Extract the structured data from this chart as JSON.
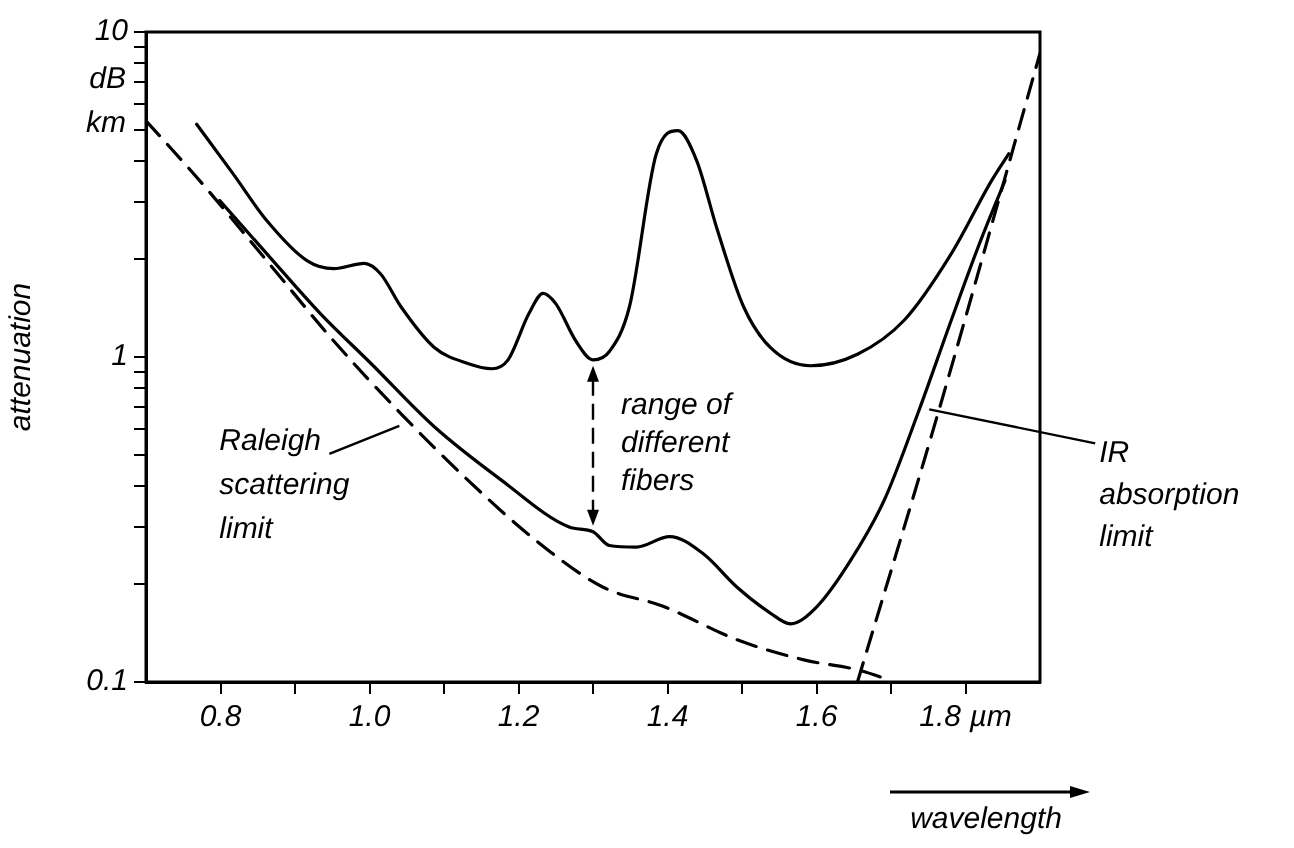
{
  "chart_data": {
    "type": "line",
    "xlabel": "wavelength",
    "ylabel": "attenuation",
    "log": "y",
    "grid": false,
    "legend": false,
    "marker": "none",
    "xlim": [
      0.7,
      1.9
    ],
    "ylim": [
      0.1,
      10
    ],
    "xticks": [
      {
        "value": 0.8,
        "label": "0.8"
      },
      {
        "value": 0.9,
        "label": null
      },
      {
        "value": 1.0,
        "label": "1.0"
      },
      {
        "value": 1.1,
        "label": null
      },
      {
        "value": 1.2,
        "label": "1.2"
      },
      {
        "value": 1.3,
        "label": null
      },
      {
        "value": 1.4,
        "label": "1.4"
      },
      {
        "value": 1.5,
        "label": null
      },
      {
        "value": 1.6,
        "label": "1.6"
      },
      {
        "value": 1.7,
        "label": null
      },
      {
        "value": 1.8,
        "label": "1.8 µm"
      }
    ],
    "yticks": [
      0.1,
      {
        "value": 0.2,
        "label": null
      },
      {
        "value": 0.3,
        "label": null
      },
      {
        "value": 0.4,
        "label": null
      },
      {
        "value": 0.5,
        "label": null
      },
      {
        "value": 0.6,
        "label": null
      },
      {
        "value": 0.7,
        "label": null
      },
      {
        "value": 0.8,
        "label": null
      },
      {
        "value": 0.9,
        "label": null
      },
      1,
      {
        "value": 2,
        "label": null
      },
      {
        "value": 3,
        "label": null
      },
      {
        "value": 4,
        "label": null
      },
      {
        "value": 5,
        "label": null
      },
      {
        "value": 6,
        "label": null
      },
      {
        "value": 7,
        "label": null
      },
      {
        "value": 8,
        "label": null
      },
      {
        "value": 9,
        "label": null
      },
      10
    ],
    "series": [
      {
        "color": "#000000",
        "line_style": "solid",
        "x": [
          0.768,
          0.817,
          0.862,
          0.916,
          0.952,
          0.993,
          1.015,
          1.042,
          1.087,
          1.132,
          1.164,
          1.186,
          1.214,
          1.233,
          1.25,
          1.277,
          1.3,
          1.322,
          1.349,
          1.385,
          1.414,
          1.439,
          1.466,
          1.502,
          1.538,
          1.592,
          1.655,
          1.718,
          1.781,
          1.835,
          1.858
        ],
        "values": [
          5.2,
          3.66,
          2.63,
          1.98,
          1.87,
          1.94,
          1.8,
          1.43,
          1.07,
          0.955,
          0.92,
          0.98,
          1.36,
          1.57,
          1.46,
          1.12,
          0.98,
          1.04,
          1.43,
          4.22,
          4.97,
          4.03,
          2.5,
          1.43,
          1.07,
          0.94,
          1.02,
          1.3,
          2.08,
          3.49,
          4.22
        ]
      },
      {
        "color": "#000000",
        "line_style": "solid",
        "x": [
          0.799,
          0.862,
          0.934,
          1.002,
          1.087,
          1.177,
          1.268,
          1.3,
          1.322,
          1.358,
          1.403,
          1.448,
          1.493,
          1.538,
          1.565,
          1.601,
          1.646,
          1.691,
          1.736,
          1.781,
          1.817,
          1.853
        ],
        "values": [
          3.03,
          2.08,
          1.36,
          0.955,
          0.61,
          0.418,
          0.3,
          0.29,
          0.263,
          0.26,
          0.28,
          0.248,
          0.196,
          0.163,
          0.151,
          0.171,
          0.237,
          0.363,
          0.67,
          1.3,
          2.18,
          3.49
        ]
      },
      {
        "color": "#000000",
        "line_style": "dashed",
        "x": [
          0.7,
          0.772,
          0.862,
          0.952,
          1.042,
          1.132,
          1.223,
          1.313,
          1.394,
          1.493,
          1.583,
          1.655,
          1.7
        ],
        "values": [
          5.33,
          3.49,
          1.98,
          1.12,
          0.67,
          0.418,
          0.273,
          0.196,
          0.171,
          0.135,
          0.117,
          0.109,
          0.101
        ]
      },
      {
        "color": "#000000",
        "line_style": "dashed",
        "x": [
          1.655,
          1.763,
          1.9
        ],
        "values": [
          0.1,
          0.67,
          8.6
        ]
      }
    ],
    "annotations": [
      {
        "text": "Raleigh scattering limit",
        "x": 1.04,
        "y": 0.65
      },
      {
        "text": "range of different fibers",
        "x": 1.3,
        "y": 0.98
      },
      {
        "text": "IR absorption limit",
        "x": 1.754,
        "y": 0.69
      },
      "dB km"
    ]
  }
}
